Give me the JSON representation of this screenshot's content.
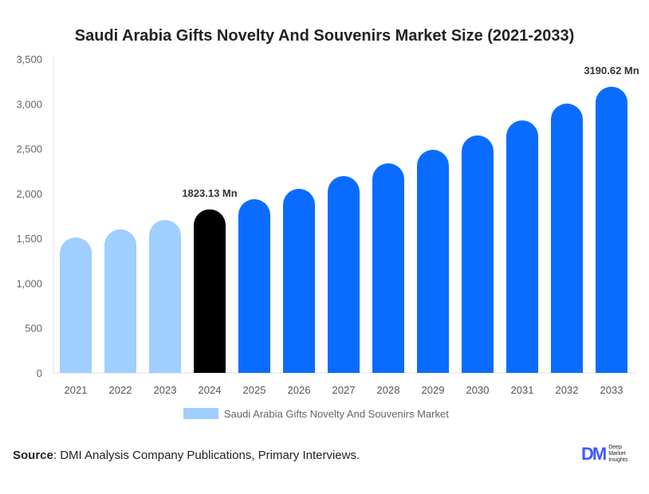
{
  "chart_data": {
    "type": "bar",
    "title": "Saudi Arabia Gifts Novelty And Souvenirs Market Size (2021-2033)",
    "categories": [
      "2021",
      "2022",
      "2023",
      "2024",
      "2025",
      "2026",
      "2027",
      "2028",
      "2029",
      "2030",
      "2031",
      "2032",
      "2033"
    ],
    "values": [
      1510,
      1600,
      1705,
      1823.13,
      1936,
      2052,
      2194,
      2336,
      2487,
      2647,
      2815,
      3002,
      3190.62
    ],
    "colors": [
      "#9fcfff",
      "#9fcfff",
      "#9fcfff",
      "#000000",
      "#0a6cff",
      "#0a6cff",
      "#0a6cff",
      "#0a6cff",
      "#0a6cff",
      "#0a6cff",
      "#0a6cff",
      "#0a6cff",
      "#0a6cff"
    ],
    "data_labels": {
      "3": "1823.13 Mn",
      "12": "3190.62 Mn"
    },
    "yticks": [
      0,
      500,
      1000,
      1500,
      2000,
      2500,
      3000,
      3500
    ],
    "ytick_labels": [
      "0",
      "500",
      "1,000",
      "1,500",
      "2,000",
      "2,500",
      "3,000",
      "3,500"
    ],
    "ylim": [
      0,
      3500
    ],
    "xlabel": "",
    "ylabel": "",
    "legend": {
      "label": "Saudi Arabia Gifts Novelty And Souvenirs Market",
      "color": "#9fcfff",
      "placement": "bottom"
    }
  },
  "source": {
    "label": "Source",
    "text": ": DMI Analysis Company Publications, Primary Interviews."
  },
  "logo": {
    "mark": "DM",
    "line1": "Deep",
    "line2": "Market",
    "line3": "Insights"
  }
}
